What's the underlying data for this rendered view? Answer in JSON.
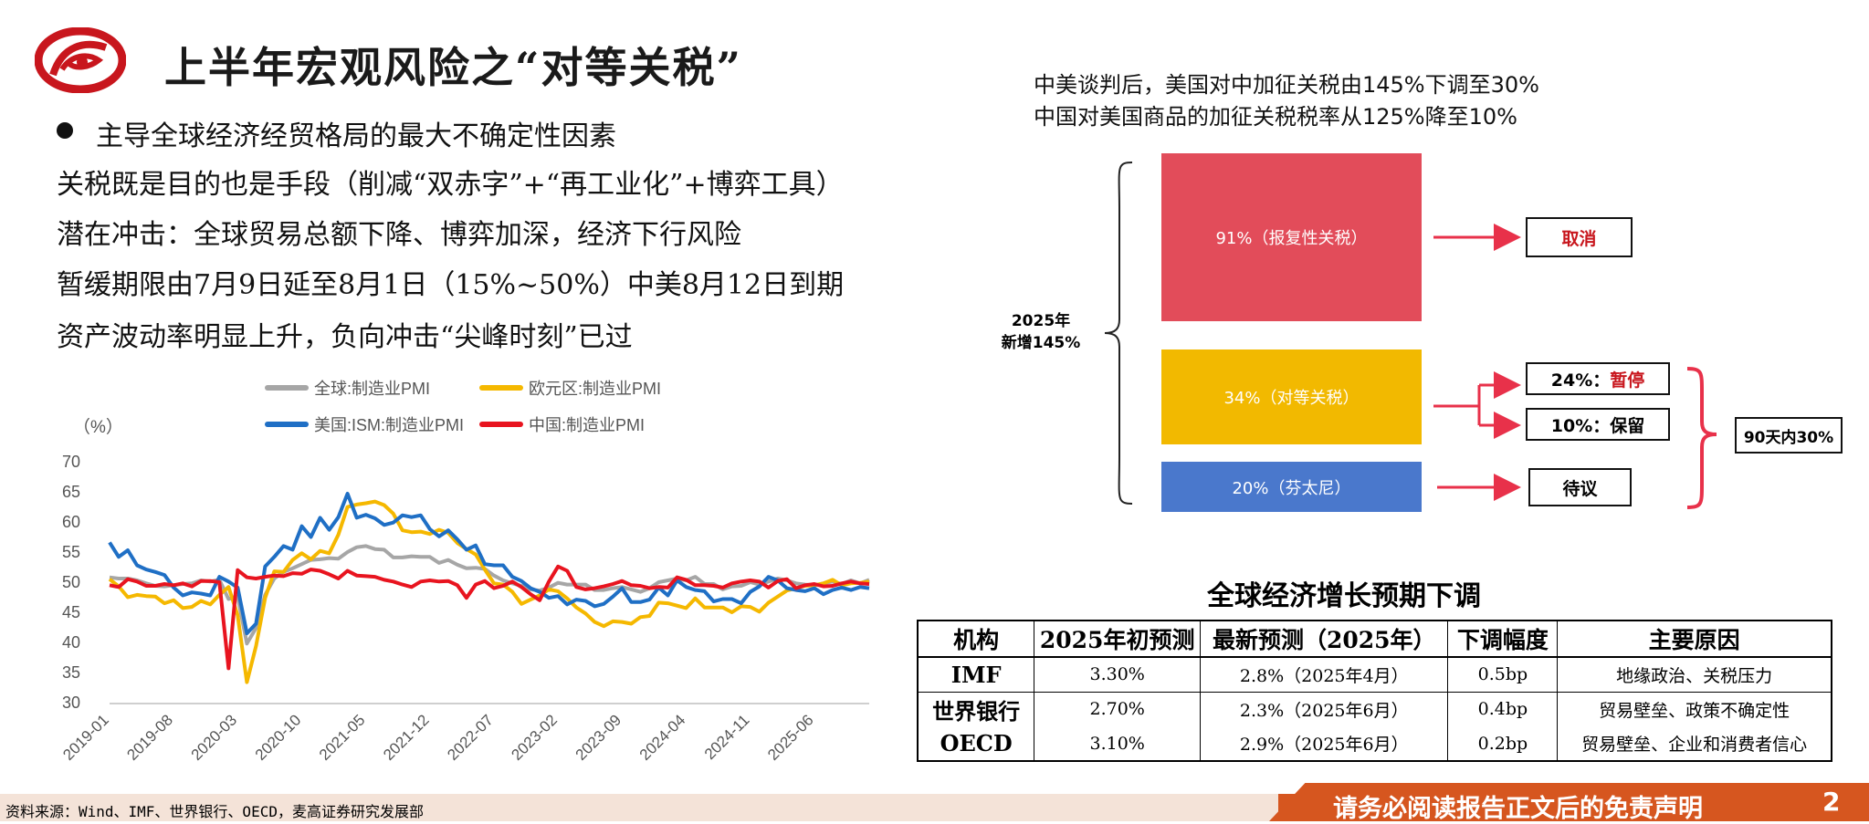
{
  "title": "上半年宏观风险之“对等关税”",
  "left_bullets": {
    "heading": "主导全球经济经贸格局的最大不确定性因素",
    "lines": [
      "关税既是目的也是手段（削减“双赤字”+“再工业化”+博弈工具）",
      "潜在冲击：全球贸易总额下降、博弈加深，经济下行风险",
      "暂缓期限由7月9日延至8月1日（15%~50%）中美8月12日到期",
      "资产波动率明显上升，负向冲击“尖峰时刻”已过"
    ]
  },
  "chart_data": {
    "type": "line",
    "unit_label": "（%）",
    "ylim": [
      30,
      70
    ],
    "yticks": [
      "70",
      "65",
      "60",
      "55",
      "50",
      "45",
      "40",
      "35",
      "30"
    ],
    "xtick_labels": [
      "2019-01",
      "2019-08",
      "2020-03",
      "2020-10",
      "2021-05",
      "2021-12",
      "2022-07",
      "2023-02",
      "2023-09",
      "2024-04",
      "2024-11",
      "2025-06"
    ],
    "grid": false,
    "legend_position": "top",
    "series": [
      {
        "name": "全球:制造业PMI",
        "color": "#a6a6a6",
        "values": [
          50.8,
          50.6,
          50.6,
          50.3,
          49.8,
          49.4,
          49.3,
          49.5,
          49.7,
          49.8,
          50.3,
          50.1,
          50.4,
          47.2,
          47.6,
          39.8,
          42.4,
          47.9,
          50.6,
          51.7,
          52.3,
          53.0,
          53.7,
          53.8,
          54.0,
          53.9,
          55.0,
          55.8,
          56.0,
          55.5,
          55.4,
          54.1,
          54.1,
          54.3,
          54.2,
          54.2,
          53.2,
          53.7,
          52.9,
          52.3,
          52.4,
          52.2,
          51.1,
          50.3,
          49.8,
          49.4,
          48.8,
          48.6,
          49.1,
          49.9,
          49.6,
          49.6,
          49.6,
          48.7,
          48.7,
          49.0,
          49.2,
          48.8,
          48.4,
          49.0,
          50.0,
          50.3,
          50.6,
          50.3,
          50.9,
          49.7,
          49.7,
          48.8,
          49.3,
          49.4,
          50.0,
          49.6,
          50.1,
          50.6,
          50.3,
          49.8,
          49.6,
          49.5,
          49.8,
          50.1,
          49.7,
          50.3,
          49.8,
          50.4
        ]
      },
      {
        "name": "欧元区:制造业PMI",
        "color": "#f5b800",
        "values": [
          50.5,
          49.3,
          47.5,
          47.9,
          47.7,
          47.6,
          46.5,
          47.0,
          45.7,
          45.9,
          46.9,
          46.3,
          47.9,
          49.2,
          44.5,
          33.4,
          39.4,
          47.4,
          51.8,
          51.7,
          53.7,
          54.8,
          53.8,
          55.2,
          54.8,
          57.9,
          62.5,
          62.9,
          63.1,
          63.4,
          62.8,
          61.4,
          58.6,
          58.3,
          58.4,
          58.0,
          58.7,
          58.2,
          56.5,
          55.5,
          54.6,
          52.1,
          49.8,
          49.6,
          48.4,
          46.4,
          47.1,
          47.8,
          48.8,
          48.5,
          47.3,
          45.8,
          44.8,
          43.4,
          42.7,
          43.5,
          43.4,
          43.1,
          44.2,
          44.4,
          46.6,
          46.5,
          46.1,
          45.7,
          47.3,
          45.8,
          45.8,
          45.8,
          45.0,
          46.0,
          45.9,
          45.1,
          46.6,
          47.6,
          48.6,
          49.0,
          49.4,
          49.5,
          49.8,
          50.4,
          49.5,
          49.8,
          49.9,
          50.1
        ]
      },
      {
        "name": "美国:ISM:制造业PMI",
        "color": "#1f6fc5",
        "values": [
          56.6,
          54.2,
          55.3,
          52.8,
          52.1,
          51.7,
          51.2,
          49.1,
          47.8,
          48.3,
          48.1,
          47.8,
          50.9,
          50.1,
          49.1,
          41.5,
          43.1,
          52.6,
          54.2,
          56.0,
          55.4,
          59.3,
          57.5,
          60.7,
          58.7,
          60.8,
          64.7,
          60.7,
          61.2,
          60.6,
          59.5,
          59.9,
          61.1,
          60.8,
          61.1,
          58.8,
          57.6,
          58.6,
          57.1,
          55.4,
          56.1,
          53.0,
          52.8,
          52.8,
          50.9,
          50.2,
          49.0,
          48.4,
          47.4,
          47.7,
          46.3,
          47.1,
          46.9,
          46.0,
          46.4,
          47.6,
          49.0,
          46.7,
          46.7,
          47.1,
          49.1,
          47.8,
          50.3,
          49.2,
          48.7,
          48.5,
          46.8,
          47.2,
          47.2,
          46.5,
          48.4,
          49.3,
          50.9,
          50.3,
          49.0,
          48.7,
          48.5,
          49.0,
          48.0,
          48.7,
          49.1,
          48.7,
          49.2,
          49.0
        ]
      },
      {
        "name": "中国:制造业PMI",
        "color": "#e8141f",
        "values": [
          49.5,
          49.2,
          50.5,
          50.1,
          49.4,
          49.4,
          49.7,
          49.5,
          49.8,
          49.3,
          50.2,
          50.2,
          50.0,
          35.7,
          52.0,
          50.8,
          50.6,
          50.9,
          51.1,
          51.0,
          51.5,
          51.4,
          52.1,
          51.9,
          51.3,
          50.6,
          51.9,
          51.1,
          51.0,
          50.9,
          50.4,
          50.1,
          49.6,
          49.2,
          50.1,
          50.3,
          50.1,
          50.2,
          49.5,
          47.4,
          49.6,
          50.2,
          49.0,
          49.4,
          50.1,
          49.2,
          48.0,
          47.0,
          50.1,
          52.6,
          51.9,
          49.2,
          48.8,
          49.0,
          49.3,
          49.7,
          50.2,
          49.5,
          49.4,
          49.0,
          49.2,
          49.1,
          50.8,
          50.4,
          49.5,
          49.5,
          49.4,
          49.1,
          49.8,
          50.1,
          50.3,
          50.1,
          49.1,
          50.2,
          50.5,
          49.0,
          49.5,
          49.7,
          49.3,
          49.4,
          49.8,
          50.1,
          49.8,
          49.7
        ]
      }
    ]
  },
  "right_top": {
    "line1": "中美谈判后，美国对中加征关税由145%下调至30%",
    "line2": "中国对美国商品的加征关税税率从125%降至10%"
  },
  "tariff_diagram": {
    "bracket_label_line1": "2025年",
    "bracket_label_line2": "新增145%",
    "blocks": [
      {
        "label": "91%（报复性关税）",
        "color": "#e24c5a"
      },
      {
        "label": "34%（对等关税）",
        "color": "#f2b900"
      },
      {
        "label": "20%（芬太尼）",
        "color": "#4a78cc"
      }
    ],
    "cancel_label": "取消",
    "pause_prefix": "24%：",
    "pause_word": "暂停",
    "keep_label": "10%：保留",
    "pending_label": "待议",
    "days_label": "90天内30%",
    "arrow_color": "#e8314a"
  },
  "forecast_table": {
    "title": "全球经济增长预期下调",
    "headers": [
      "机构",
      "2025年初预测",
      "最新预测（2025年）",
      "下调幅度",
      "主要原因"
    ],
    "rows": [
      [
        "IMF",
        "3.30%",
        "2.8%（2025年4月）",
        "0.5bp",
        "地缘政治、关税压力"
      ],
      [
        "世界银行",
        "2.70%",
        "2.3%（2025年6月）",
        "0.4bp",
        "贸易壁垒、政策不确定性"
      ],
      [
        "OECD",
        "3.10%",
        "2.9%（2025年6月）",
        "0.2bp",
        "贸易壁垒、企业和消费者信心"
      ]
    ]
  },
  "footer": {
    "source": "资料来源：Wind、IMF、世界银行、OECD，麦高证券研究发展部",
    "disclaimer": "请务必阅读报告正文后的免责声明",
    "page_number": "2"
  },
  "colors": {
    "accent_red": "#c8161d",
    "footer_orange": "#d6561f",
    "footer_dark": "#a3101a"
  }
}
